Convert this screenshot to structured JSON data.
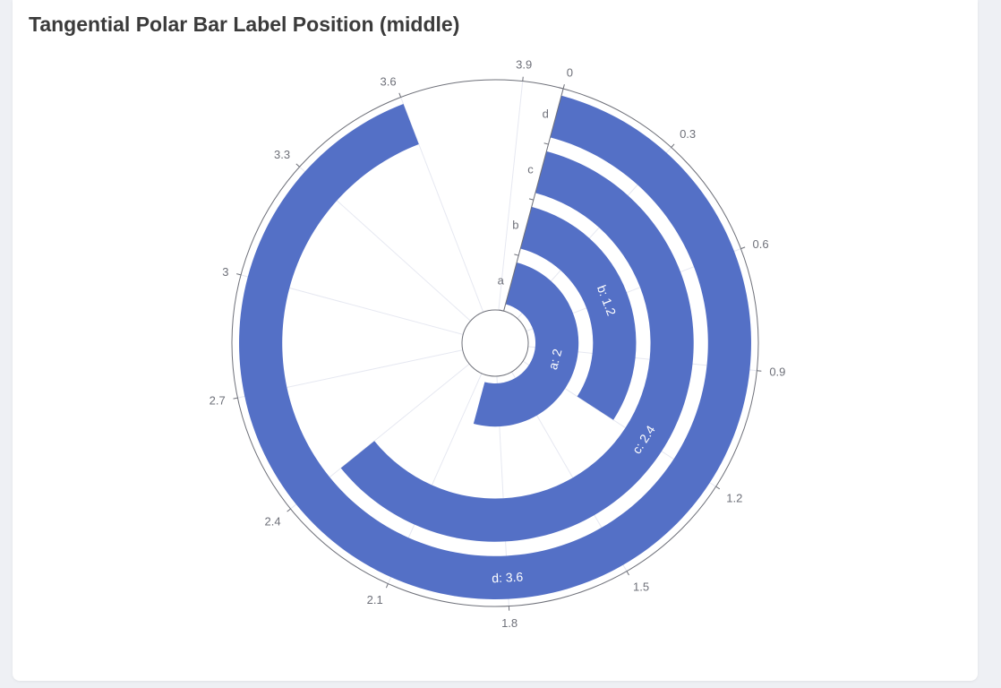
{
  "title": "Tangential Polar Bar Label Position (middle)",
  "chart_data": {
    "type": "bar",
    "coordinate": "polar",
    "orientation": "tangential",
    "categories": [
      "a",
      "b",
      "c",
      "d"
    ],
    "values": [
      2,
      1.2,
      2.4,
      3.6
    ],
    "angle_axis": {
      "min": 0,
      "max": 4,
      "ticks": [
        0,
        0.3,
        0.6,
        0.9,
        1.2,
        1.5,
        1.8,
        2.1,
        2.4,
        2.7,
        3,
        3.3,
        3.6,
        3.9
      ]
    },
    "label_position": "middle",
    "labels": [
      "a: 2",
      "b: 1.2",
      "c: 2.4",
      "d: 3.6"
    ],
    "bar_color": "#5470c6",
    "grid": true
  }
}
